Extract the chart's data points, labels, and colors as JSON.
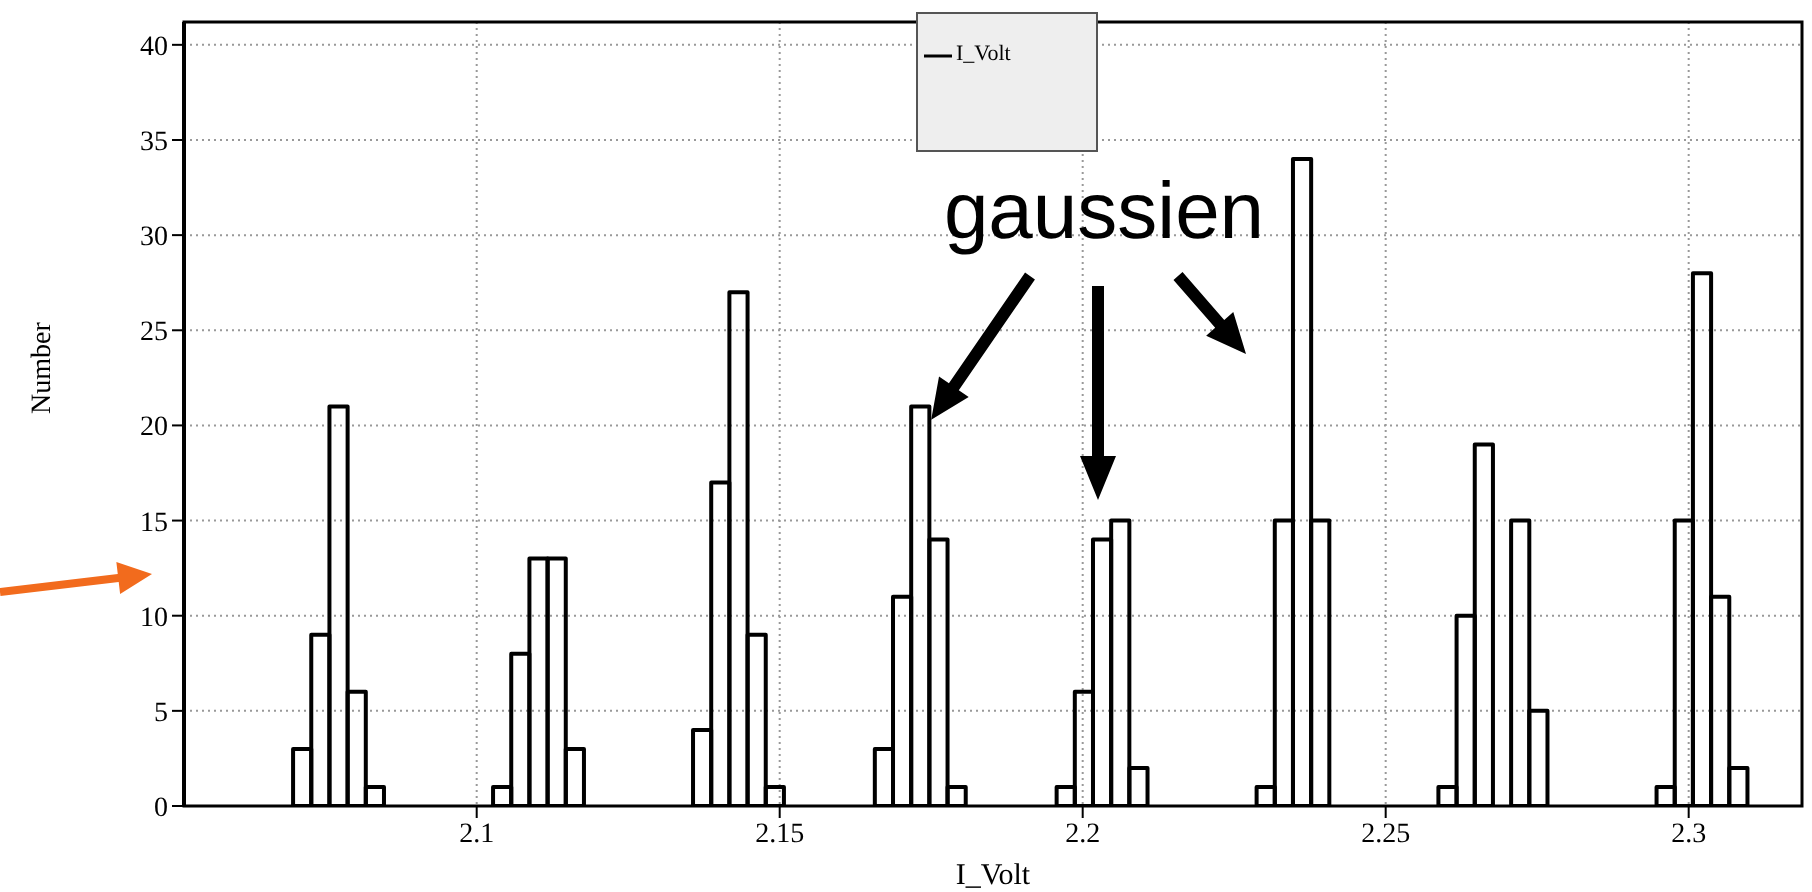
{
  "chart_data": {
    "type": "histogram",
    "xlabel": "I_Volt",
    "ylabel": "Number",
    "bins": [
      2.0517,
      2.0547,
      2.0577,
      2.0607,
      2.0637,
      2.0667,
      2.0697,
      2.0727,
      2.0757,
      2.0787,
      2.0817,
      2.0847,
      2.0877,
      2.0907,
      2.0937,
      2.0967,
      2.0997,
      2.1027,
      2.1057,
      2.1087,
      2.1117,
      2.1147,
      2.1177,
      2.1207,
      2.1237,
      2.1267,
      2.1297,
      2.1327,
      2.1357,
      2.1387,
      2.1417,
      2.1447,
      2.1477,
      2.1507,
      2.1537,
      2.1567,
      2.1597,
      2.1627,
      2.1657,
      2.1687,
      2.1717,
      2.1747,
      2.1777,
      2.1807,
      2.1837,
      2.1867,
      2.1897,
      2.1927,
      2.1957,
      2.1987,
      2.2017,
      2.2047,
      2.2077,
      2.2107,
      2.2137,
      2.2167,
      2.2197,
      2.2227,
      2.2257,
      2.2287,
      2.2317,
      2.2347,
      2.2377,
      2.2407,
      2.2437,
      2.2467,
      2.2497,
      2.2527,
      2.2557,
      2.2587,
      2.2617,
      2.2647,
      2.2677,
      2.2707,
      2.2737,
      2.2767,
      2.2797,
      2.2827,
      2.2857,
      2.2887,
      2.2917,
      2.2947,
      2.2977,
      2.3007,
      2.3037,
      2.3067,
      2.3097,
      2.3127,
      2.3157,
      2.3187
    ],
    "series": [
      {
        "name": "I_Volt",
        "color": "#000000",
        "values": [
          0,
          0,
          0,
          0,
          0,
          0,
          3,
          9,
          21,
          6,
          1,
          0,
          0,
          0,
          0,
          0,
          0,
          1,
          8,
          13,
          13,
          3,
          0,
          0,
          0,
          0,
          0,
          0,
          4,
          17,
          27,
          9,
          1,
          0,
          0,
          0,
          0,
          0,
          3,
          11,
          21,
          14,
          1,
          0,
          0,
          0,
          0,
          0,
          1,
          6,
          14,
          15,
          2,
          0,
          0,
          0,
          0,
          0,
          0,
          1,
          15,
          34,
          15,
          0,
          0,
          0,
          0,
          0,
          0,
          1,
          10,
          19,
          0,
          15,
          5,
          0,
          0,
          0,
          0,
          0,
          0,
          1,
          15,
          28,
          11,
          2,
          0,
          0,
          0
        ]
      }
    ],
    "xlim": [
      2.0517,
      2.3187
    ],
    "xticks": [
      2.1,
      2.15,
      2.2,
      2.25,
      2.3
    ],
    "ylim": [
      0,
      41.2
    ],
    "yticks": [
      0,
      5,
      10,
      15,
      20,
      25,
      30,
      35,
      40
    ],
    "grid": true,
    "legend": "top",
    "annotations": [
      {
        "text": "gaussien",
        "x": 2.175,
        "y": 20.3
      }
    ]
  }
}
